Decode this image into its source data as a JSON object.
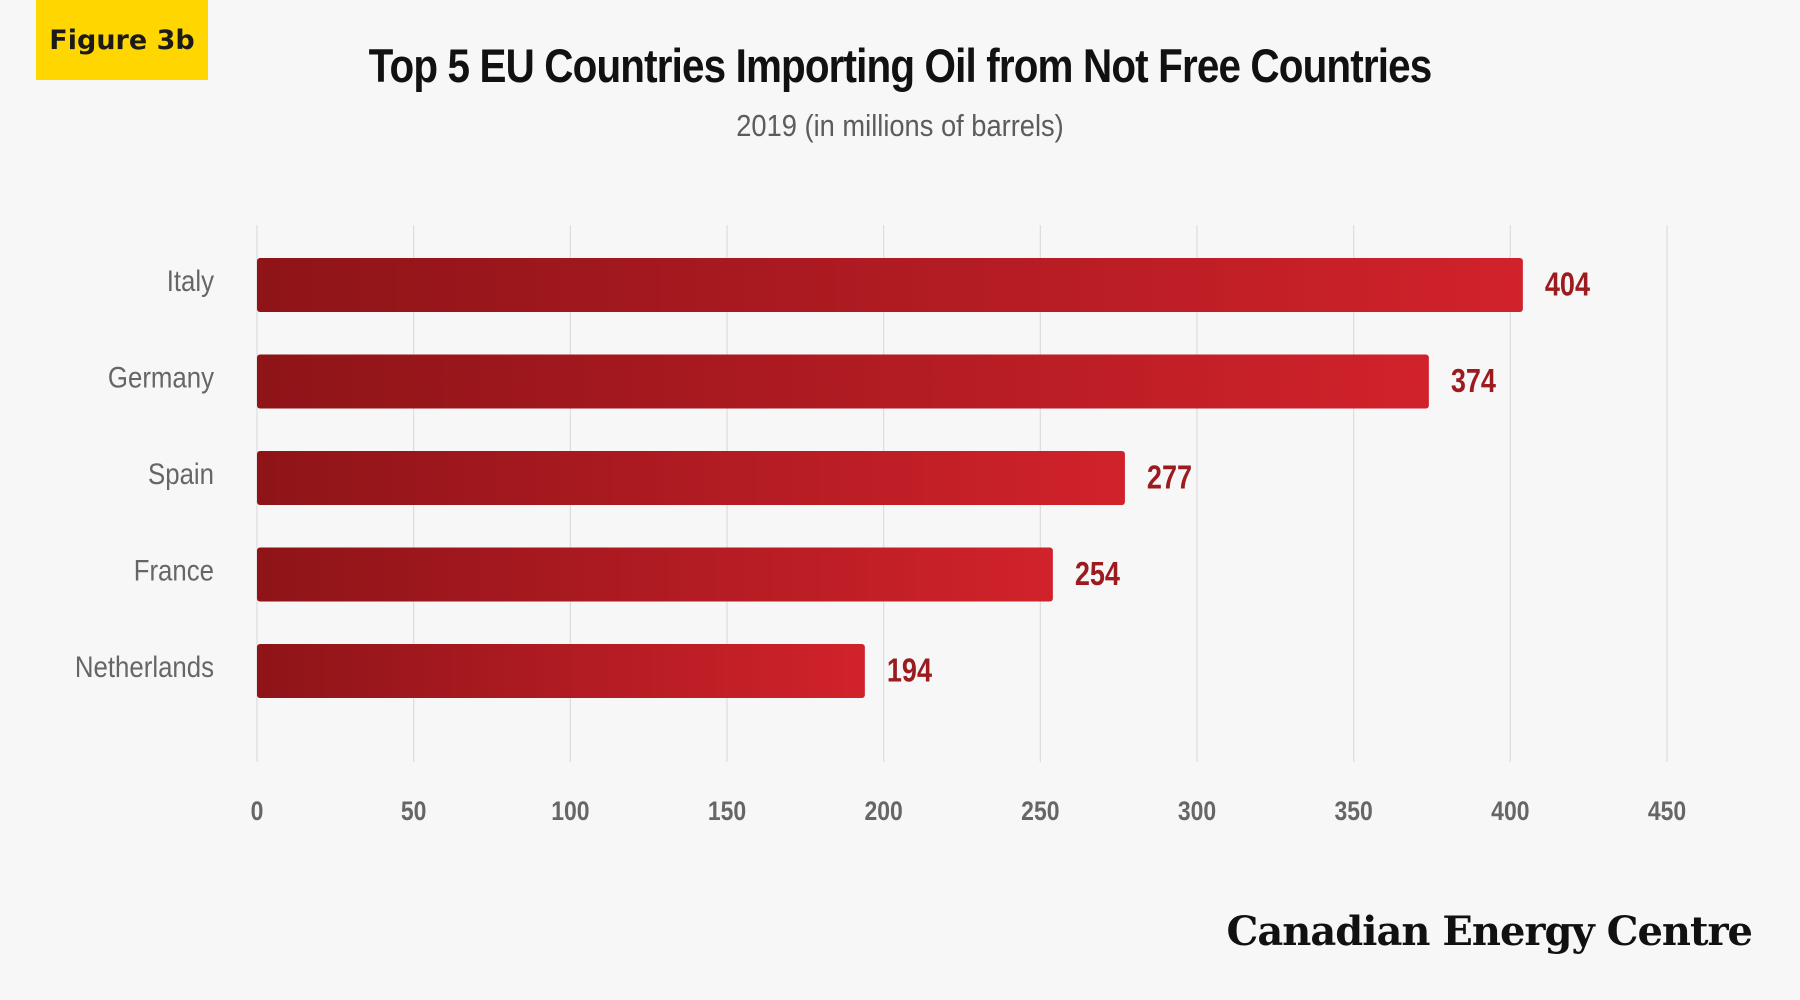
{
  "figure_label": "Figure 3b",
  "brand": "Canadian Energy Centre",
  "colors": {
    "bar_dark": "#8e1418",
    "bar_light": "#d1222b",
    "value_label": "#9b1b1f",
    "grid": "#dddddd",
    "axis_text": "#666666"
  },
  "chart_data": {
    "type": "bar",
    "orientation": "horizontal",
    "title": "Top 5 EU Countries Importing Oil from Not Free Countries",
    "subtitle": "2019 (in millions of barrels)",
    "categories": [
      "Italy",
      "Germany",
      "Spain",
      "France",
      "Netherlands"
    ],
    "values": [
      404,
      374,
      277,
      254,
      194
    ],
    "xlim": [
      0,
      450
    ],
    "xticks": [
      0,
      50,
      100,
      150,
      200,
      250,
      300,
      350,
      400,
      450
    ],
    "grid": "vertical",
    "legend": "none"
  }
}
